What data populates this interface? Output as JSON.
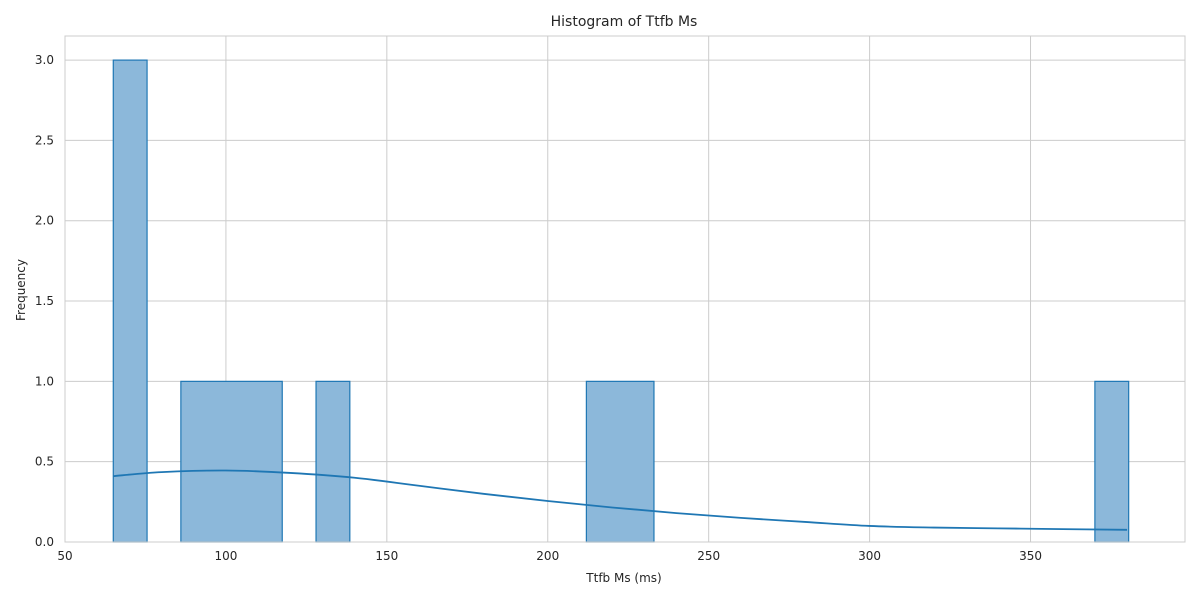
{
  "chart_data": {
    "type": "bar",
    "title": "Histogram of Ttfb Ms",
    "xlabel": "Ttfb Ms (ms)",
    "ylabel": "Frequency",
    "xlim": [
      50,
      398
    ],
    "ylim": [
      0,
      3.15
    ],
    "x_ticks": [
      50,
      100,
      150,
      200,
      250,
      300,
      350
    ],
    "y_ticks": [
      0.0,
      0.5,
      1.0,
      1.5,
      2.0,
      2.5,
      3.0
    ],
    "x_tick_labels": [
      "50",
      "100",
      "150",
      "200",
      "250",
      "300",
      "350"
    ],
    "y_tick_labels": [
      "0.0",
      "0.5",
      "1.0",
      "1.5",
      "2.0",
      "2.5",
      "3.0"
    ],
    "grid": true,
    "bins": [
      {
        "x0": 65.0,
        "x1": 75.5,
        "count": 3
      },
      {
        "x0": 86.0,
        "x1": 117.5,
        "count": 1
      },
      {
        "x0": 128.0,
        "x1": 138.5,
        "count": 1
      },
      {
        "x0": 212.0,
        "x1": 233.0,
        "count": 1
      },
      {
        "x0": 370.0,
        "x1": 380.5,
        "count": 1
      }
    ],
    "kde": {
      "x": [
        65,
        80,
        100,
        120,
        140,
        160,
        180,
        200,
        220,
        240,
        260,
        280,
        300,
        320,
        340,
        360,
        380
      ],
      "y": [
        0.41,
        0.435,
        0.445,
        0.43,
        0.4,
        0.35,
        0.3,
        0.255,
        0.215,
        0.18,
        0.15,
        0.125,
        0.1,
        0.09,
        0.085,
        0.08,
        0.076
      ]
    },
    "colors": {
      "bar_fill": "#8cb8da",
      "bar_edge": "#1f77b4",
      "kde_line": "#1f77b4",
      "grid": "#cccccc",
      "spine": "#cccccc",
      "text": "#262626"
    }
  }
}
